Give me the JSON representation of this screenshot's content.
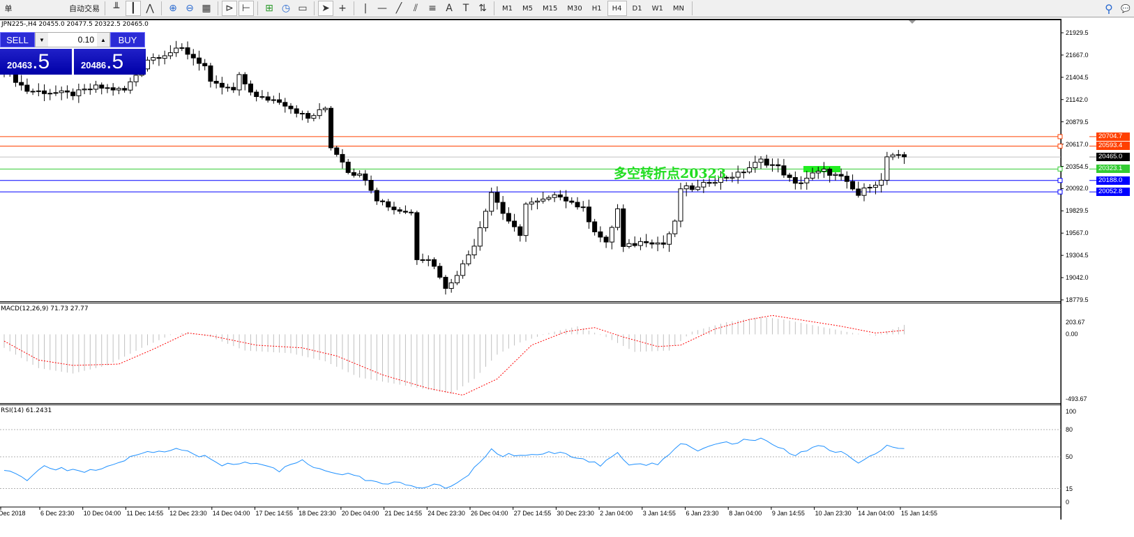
{
  "toolbar": {
    "items": [
      {
        "name": "new-order-icon",
        "label": "单"
      },
      {
        "name": "market-watch-icon",
        "label": ""
      },
      {
        "name": "history-icon",
        "label": ""
      },
      {
        "name": "signals-icon",
        "label": ""
      },
      {
        "name": "autotrading-button",
        "label": "自动交易"
      }
    ],
    "chart_tools": [
      "bar-chart-icon",
      "candlestick-icon",
      "line-chart-icon",
      "zoom-in-icon",
      "zoom-out-icon",
      "tile-windows-icon",
      "autoscroll-icon",
      "chart-shift-icon",
      "indicators-icon",
      "periods-icon",
      "templates-icon",
      "cursor-icon",
      "crosshair-icon",
      "vertical-line-icon",
      "horizontal-line-icon",
      "trendline-icon",
      "equidistant-channel-icon",
      "fibonacci-icon",
      "text-icon",
      "text-label-icon",
      "arrows-icon"
    ],
    "text_tool": "A",
    "timeframes": [
      "M1",
      "M5",
      "M15",
      "M30",
      "H1",
      "H4",
      "D1",
      "W1",
      "MN"
    ],
    "active_timeframe": "H4"
  },
  "chart": {
    "title": "JPN225-,H4  20455.0 20477.5 20322.5 20465.0",
    "trade_panel": {
      "sell": "SELL",
      "buy": "BUY",
      "lot": "0.10",
      "bid_main": "20463",
      "bid_frac": ".5",
      "ask_main": "20486",
      "ask_frac": ".5"
    },
    "annotation": "多空转折点20323",
    "annotation_color": "#22dd22",
    "price_ticks": [
      "21929.5",
      "21667.0",
      "21404.5",
      "21142.0",
      "20879.5",
      "20617.0",
      "20354.5",
      "20092.0",
      "19829.5",
      "19567.0",
      "19304.5",
      "19042.0",
      "18779.5"
    ],
    "price_range": [
      18779.5,
      21929.5
    ],
    "hlines": [
      {
        "label": "20704.7",
        "price": 20704.7,
        "color": "#ff4000"
      },
      {
        "label": "20593.4",
        "price": 20593.4,
        "color": "#ff4000"
      },
      {
        "label": "20465.0",
        "price": 20465.0,
        "color": "#000000",
        "line": "#c0c0c0"
      },
      {
        "label": "20323.1",
        "price": 20323.1,
        "color": "#33cc33"
      },
      {
        "label": "20188.0",
        "price": 20188.0,
        "color": "#0000ff"
      },
      {
        "label": "20052.8",
        "price": 20052.8,
        "color": "#0000ff"
      }
    ],
    "close_path": [
      [
        0,
        21494
      ],
      [
        4,
        21247
      ],
      [
        12,
        21206
      ],
      [
        16,
        21288
      ],
      [
        21,
        21250
      ],
      [
        25,
        21617
      ],
      [
        31,
        21740
      ],
      [
        35,
        21535
      ],
      [
        36,
        21329
      ],
      [
        40,
        21250
      ],
      [
        41,
        21411
      ],
      [
        44,
        21165
      ],
      [
        48,
        21130
      ],
      [
        53,
        20918
      ],
      [
        56,
        21041
      ],
      [
        57,
        20589
      ],
      [
        59,
        20424
      ],
      [
        60,
        20301
      ],
      [
        63,
        20219
      ],
      [
        65,
        19972
      ],
      [
        68,
        19849
      ],
      [
        71,
        19808
      ],
      [
        72,
        19273
      ],
      [
        74,
        19273
      ],
      [
        76,
        19067
      ],
      [
        77,
        18903
      ],
      [
        80,
        19191
      ],
      [
        82,
        19438
      ],
      [
        84,
        19849
      ],
      [
        85,
        20054
      ],
      [
        87,
        19808
      ],
      [
        90,
        19520
      ],
      [
        90.5,
        19931
      ],
      [
        93,
        19931
      ],
      [
        97,
        20013
      ],
      [
        101,
        19849
      ],
      [
        103,
        19602
      ],
      [
        105,
        19438
      ],
      [
        107,
        19849
      ],
      [
        108,
        19396
      ],
      [
        112,
        19480
      ],
      [
        115,
        19438
      ],
      [
        117,
        19684
      ],
      [
        118,
        20095
      ],
      [
        121,
        20095
      ],
      [
        123,
        20178
      ],
      [
        128,
        20260
      ],
      [
        132,
        20424
      ],
      [
        135,
        20342
      ],
      [
        138,
        20136
      ],
      [
        141,
        20260
      ],
      [
        143,
        20300
      ],
      [
        146,
        20219
      ],
      [
        149,
        20013
      ],
      [
        151,
        20136
      ],
      [
        153,
        20178
      ],
      [
        154,
        20465
      ],
      [
        157,
        20465
      ]
    ],
    "macd": {
      "label": "MACD(12,26,9) 71.73 27.77",
      "ticks": [
        "203.67",
        "0.00",
        "-493.67"
      ],
      "range": [
        -493.67,
        203.67
      ],
      "hist_path": [
        [
          0,
          -100
        ],
        [
          6,
          -250
        ],
        [
          12,
          -290
        ],
        [
          18,
          -230
        ],
        [
          24,
          -100
        ],
        [
          29,
          -5
        ],
        [
          32,
          15
        ],
        [
          36,
          -20
        ],
        [
          42,
          -120
        ],
        [
          50,
          -140
        ],
        [
          56,
          -200
        ],
        [
          62,
          -320
        ],
        [
          70,
          -380
        ],
        [
          78,
          -440
        ],
        [
          82,
          -330
        ],
        [
          86,
          -150
        ],
        [
          90,
          -60
        ],
        [
          95,
          10
        ],
        [
          100,
          60
        ],
        [
          105,
          -20
        ],
        [
          110,
          -130
        ],
        [
          116,
          -120
        ],
        [
          120,
          20
        ],
        [
          126,
          90
        ],
        [
          132,
          130
        ],
        [
          136,
          110
        ],
        [
          142,
          60
        ],
        [
          148,
          10
        ],
        [
          152,
          -10
        ],
        [
          157,
          70
        ]
      ],
      "signal_path": [
        [
          0,
          -50
        ],
        [
          6,
          -190
        ],
        [
          12,
          -230
        ],
        [
          20,
          -220
        ],
        [
          26,
          -110
        ],
        [
          32,
          10
        ],
        [
          36,
          -10
        ],
        [
          44,
          -80
        ],
        [
          52,
          -100
        ],
        [
          58,
          -160
        ],
        [
          66,
          -300
        ],
        [
          74,
          -400
        ],
        [
          80,
          -450
        ],
        [
          86,
          -330
        ],
        [
          92,
          -80
        ],
        [
          98,
          20
        ],
        [
          103,
          50
        ],
        [
          108,
          -20
        ],
        [
          114,
          -90
        ],
        [
          118,
          -80
        ],
        [
          124,
          40
        ],
        [
          130,
          110
        ],
        [
          134,
          140
        ],
        [
          140,
          100
        ],
        [
          146,
          60
        ],
        [
          152,
          10
        ],
        [
          157,
          30
        ]
      ]
    },
    "rsi": {
      "label": "RSI(14) 61.2431",
      "ticks": [
        "100",
        "80",
        "50",
        "15",
        "0"
      ],
      "levels": [
        80,
        50,
        15
      ],
      "path": [
        [
          0,
          37
        ],
        [
          4,
          25
        ],
        [
          7,
          40
        ],
        [
          11,
          35
        ],
        [
          14,
          33
        ],
        [
          18,
          40
        ],
        [
          24,
          55
        ],
        [
          30,
          58
        ],
        [
          35,
          50
        ],
        [
          38,
          40
        ],
        [
          42,
          45
        ],
        [
          48,
          35
        ],
        [
          52,
          45
        ],
        [
          57,
          32
        ],
        [
          60,
          30
        ],
        [
          65,
          22
        ],
        [
          70,
          20
        ],
        [
          72,
          14
        ],
        [
          75,
          20
        ],
        [
          77,
          15
        ],
        [
          80,
          25
        ],
        [
          84,
          50
        ],
        [
          85,
          57
        ],
        [
          87,
          52
        ],
        [
          90,
          52
        ],
        [
          97,
          55
        ],
        [
          101,
          48
        ],
        [
          104,
          40
        ],
        [
          107,
          53
        ],
        [
          109,
          40
        ],
        [
          114,
          42
        ],
        [
          118,
          65
        ],
        [
          121,
          58
        ],
        [
          126,
          65
        ],
        [
          132,
          70
        ],
        [
          135,
          60
        ],
        [
          138,
          52
        ],
        [
          142,
          62
        ],
        [
          146,
          55
        ],
        [
          149,
          42
        ],
        [
          151,
          50
        ],
        [
          154,
          63
        ],
        [
          157,
          58
        ]
      ]
    },
    "time_labels": [
      "Dec 2018",
      "6 Dec 23:30",
      "10 Dec 04:00",
      "11 Dec 14:55",
      "12 Dec 23:30",
      "14 Dec 04:00",
      "17 Dec 14:55",
      "18 Dec 23:30",
      "20 Dec 04:00",
      "21 Dec 14:55",
      "24 Dec 23:30",
      "26 Dec 04:00",
      "27 Dec 14:55",
      "30 Dec 23:30",
      "2 Jan 04:00",
      "3 Jan 14:55",
      "6 Jan 23:30",
      "8 Jan 04:00",
      "9 Jan 14:55",
      "10 Jan 23:30",
      "14 Jan 04:00",
      "15 Jan 14:55"
    ]
  }
}
